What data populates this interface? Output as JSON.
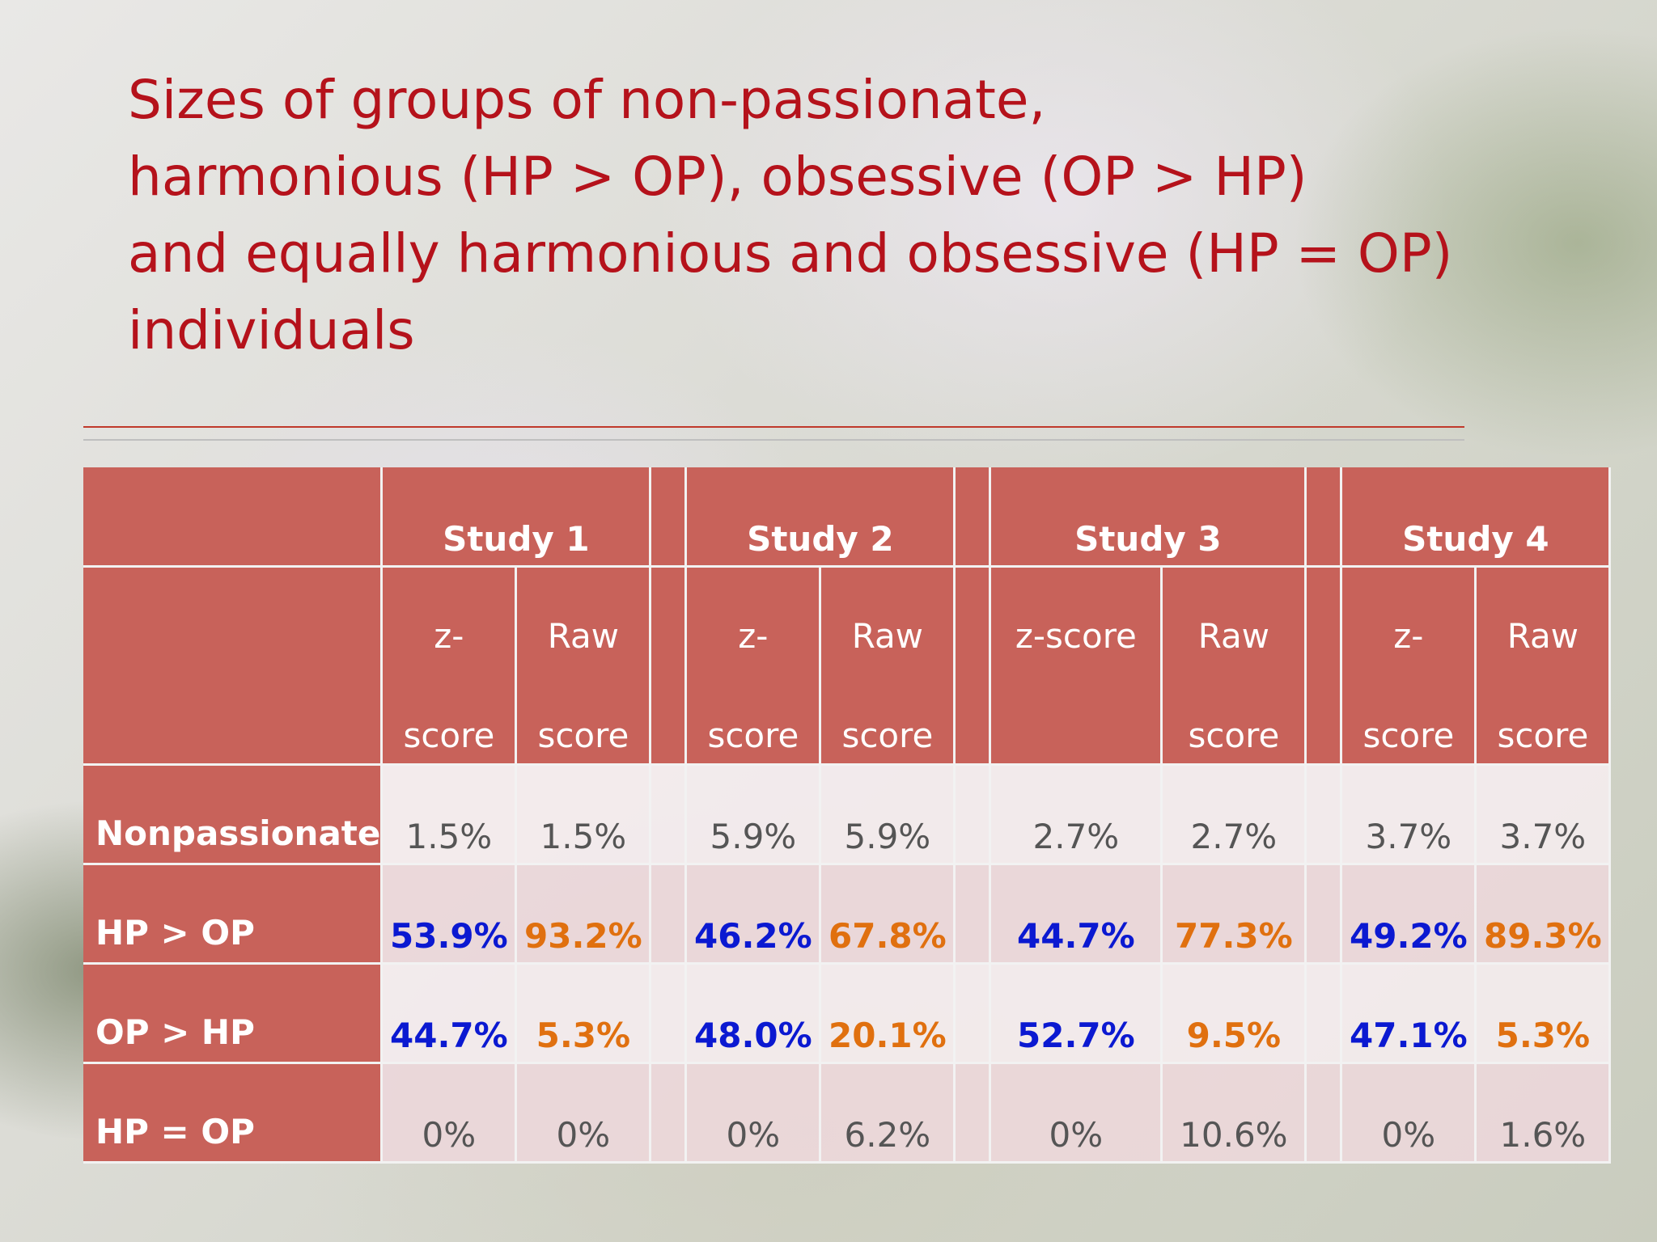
{
  "slide": {
    "title_lines": [
      "Sizes of groups of non-passionate,",
      "harmonious (HP > OP), obsessive (OP > HP)",
      "and equally harmonious and obsessive (HP = OP)",
      "individuals"
    ]
  },
  "table": {
    "studies": [
      "Study 1",
      "Study 2",
      "Study 3",
      "Study 4"
    ],
    "subheaders": {
      "s1": [
        "z-",
        "score",
        "Raw",
        "score"
      ],
      "s2": [
        "z-",
        "score",
        "Raw",
        "score"
      ],
      "s3": [
        "z-score",
        "",
        "Raw",
        "score"
      ],
      "s4": [
        "z-",
        "score",
        "Raw",
        "score"
      ]
    },
    "rows": [
      {
        "label": "Nonpassionate",
        "values": [
          "1.5%",
          "1.5%",
          "5.9%",
          "5.9%",
          "2.7%",
          "2.7%",
          "3.7%",
          "3.7%"
        ]
      },
      {
        "label": "HP > OP",
        "values": [
          "53.9%",
          "93.2%",
          "46.2%",
          "67.8%",
          "44.7%",
          "77.3%",
          "49.2%",
          "89.3%"
        ]
      },
      {
        "label": "OP > HP",
        "values": [
          "44.7%",
          "5.3%",
          "48.0%",
          "20.1%",
          "52.7%",
          "9.5%",
          "47.1%",
          "5.3%"
        ]
      },
      {
        "label": "HP = OP",
        "values": [
          "0%",
          "0%",
          "0%",
          "6.2%",
          "0%",
          "10.6%",
          "0%",
          "1.6%"
        ]
      }
    ]
  },
  "colors": {
    "title": "#b5121b",
    "header_bg": "#c8625a",
    "zscore_highlight": "#0b19d1",
    "raw_highlight": "#e0700f"
  }
}
